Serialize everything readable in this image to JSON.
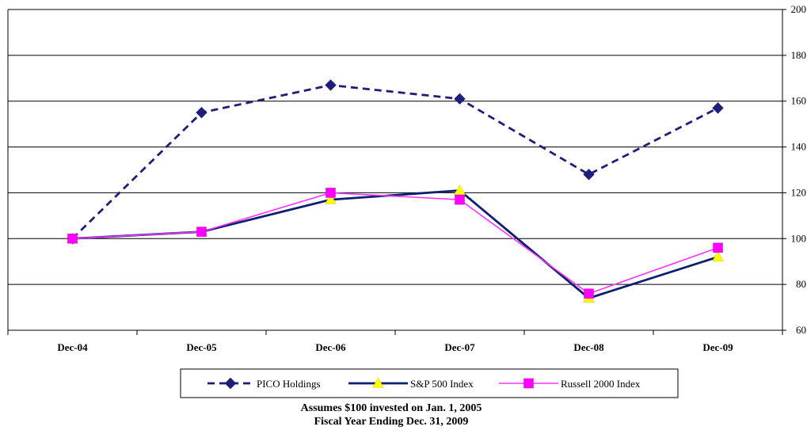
{
  "chart_data": {
    "type": "line",
    "categories": [
      "Dec-04",
      "Dec-05",
      "Dec-06",
      "Dec-07",
      "Dec-08",
      "Dec-09"
    ],
    "ylim": [
      60,
      200
    ],
    "yticks": [
      60,
      80,
      100,
      120,
      140,
      160,
      180,
      200
    ],
    "grid": true,
    "legend_position": "bottom",
    "series": [
      {
        "name": "PICO Holdings",
        "values": [
          100,
          155,
          167,
          161,
          128,
          157
        ],
        "color": "#1f1f7a",
        "dash": "dashed",
        "marker": "diamond"
      },
      {
        "name": "S&P 500 Index",
        "values": [
          100,
          103,
          117,
          121,
          74,
          92
        ],
        "color": "#0d1f6e",
        "dash": "solid",
        "marker": "triangle",
        "marker_color": "#ffff00"
      },
      {
        "name": "Russell 2000 Index",
        "values": [
          100,
          103,
          120,
          117,
          76,
          96
        ],
        "color": "#ff33ff",
        "dash": "solid",
        "marker": "square",
        "marker_color": "#ff00ff"
      }
    ]
  },
  "caption": {
    "line1": "Assumes $100 invested on Jan. 1, 2005",
    "line2": "Fiscal Year Ending Dec. 31, 2009"
  }
}
